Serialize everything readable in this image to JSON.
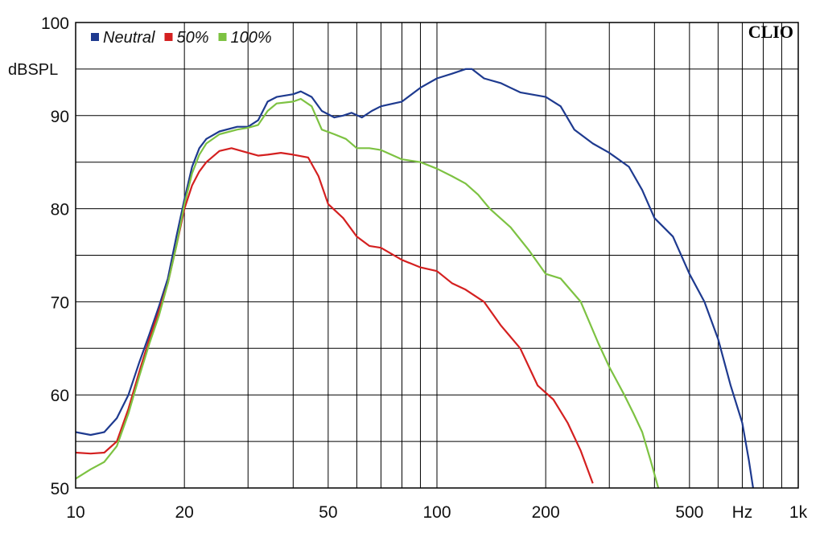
{
  "chart_data": {
    "type": "line",
    "brand": "CLIO",
    "ylabel": "dBSPL",
    "xlabel": "Hz",
    "xscale": "log",
    "xlim": [
      10,
      1000
    ],
    "ylim": [
      50,
      100
    ],
    "grid": true,
    "legend_position": "top-left",
    "x_tick_labels": [
      {
        "value": 10,
        "label": "10"
      },
      {
        "value": 20,
        "label": "20"
      },
      {
        "value": 50,
        "label": "50"
      },
      {
        "value": 100,
        "label": "100"
      },
      {
        "value": 200,
        "label": "200"
      },
      {
        "value": 500,
        "label": "500"
      },
      {
        "value": 1000,
        "label": "1k"
      }
    ],
    "y_tick_labels": [
      {
        "value": 50,
        "label": "50"
      },
      {
        "value": 60,
        "label": "60"
      },
      {
        "value": 70,
        "label": "70"
      },
      {
        "value": 80,
        "label": "80"
      },
      {
        "value": 90,
        "label": "90"
      },
      {
        "value": 100,
        "label": "100"
      }
    ],
    "series": [
      {
        "name": "Neutral",
        "color": "#1e3a8f",
        "points": [
          [
            10,
            56
          ],
          [
            11,
            55.7
          ],
          [
            12,
            56
          ],
          [
            13,
            57.5
          ],
          [
            14,
            60
          ],
          [
            15,
            63.5
          ],
          [
            16,
            66.5
          ],
          [
            17,
            69.5
          ],
          [
            18,
            72.5
          ],
          [
            19,
            77
          ],
          [
            20,
            81
          ],
          [
            21,
            84.5
          ],
          [
            22,
            86.5
          ],
          [
            23,
            87.5
          ],
          [
            25,
            88.3
          ],
          [
            28,
            88.8
          ],
          [
            30,
            88.8
          ],
          [
            32,
            89.5
          ],
          [
            34,
            91.5
          ],
          [
            36,
            92
          ],
          [
            40,
            92.3
          ],
          [
            42,
            92.6
          ],
          [
            45,
            92
          ],
          [
            48,
            90.5
          ],
          [
            52,
            89.8
          ],
          [
            55,
            90
          ],
          [
            58,
            90.3
          ],
          [
            62,
            89.8
          ],
          [
            66,
            90.5
          ],
          [
            70,
            91
          ],
          [
            80,
            91.5
          ],
          [
            90,
            93
          ],
          [
            100,
            94
          ],
          [
            110,
            94.5
          ],
          [
            120,
            95
          ],
          [
            125,
            95
          ],
          [
            135,
            94
          ],
          [
            150,
            93.5
          ],
          [
            170,
            92.5
          ],
          [
            200,
            92
          ],
          [
            220,
            91
          ],
          [
            240,
            88.5
          ],
          [
            270,
            87
          ],
          [
            300,
            86
          ],
          [
            340,
            84.5
          ],
          [
            370,
            82
          ],
          [
            400,
            79
          ],
          [
            450,
            77
          ],
          [
            500,
            73
          ],
          [
            550,
            70
          ],
          [
            600,
            66
          ],
          [
            650,
            61
          ],
          [
            700,
            57
          ],
          [
            730,
            53
          ],
          [
            750,
            50
          ]
        ]
      },
      {
        "name": "50%",
        "color": "#d42020",
        "points": [
          [
            10,
            53.8
          ],
          [
            11,
            53.7
          ],
          [
            12,
            53.8
          ],
          [
            13,
            55
          ],
          [
            14,
            58.5
          ],
          [
            15,
            62.5
          ],
          [
            16,
            66
          ],
          [
            17,
            69
          ],
          [
            18,
            72
          ],
          [
            19,
            76
          ],
          [
            20,
            80
          ],
          [
            21,
            82.5
          ],
          [
            22,
            84
          ],
          [
            23,
            85
          ],
          [
            25,
            86.2
          ],
          [
            27,
            86.5
          ],
          [
            30,
            86
          ],
          [
            32,
            85.7
          ],
          [
            34,
            85.8
          ],
          [
            37,
            86
          ],
          [
            40,
            85.8
          ],
          [
            44,
            85.5
          ],
          [
            47,
            83.5
          ],
          [
            50,
            80.5
          ],
          [
            55,
            79
          ],
          [
            60,
            77
          ],
          [
            65,
            76
          ],
          [
            70,
            75.8
          ],
          [
            80,
            74.5
          ],
          [
            90,
            73.7
          ],
          [
            100,
            73.3
          ],
          [
            110,
            72
          ],
          [
            120,
            71.3
          ],
          [
            135,
            70
          ],
          [
            150,
            67.5
          ],
          [
            170,
            65
          ],
          [
            190,
            61
          ],
          [
            210,
            59.5
          ],
          [
            230,
            57
          ],
          [
            250,
            54
          ],
          [
            270,
            50.5
          ]
        ]
      },
      {
        "name": "100%",
        "color": "#7dc242",
        "points": [
          [
            10,
            51
          ],
          [
            11,
            52
          ],
          [
            12,
            52.8
          ],
          [
            13,
            54.5
          ],
          [
            14,
            58
          ],
          [
            15,
            62
          ],
          [
            16,
            65.5
          ],
          [
            17,
            68.5
          ],
          [
            18,
            72
          ],
          [
            19,
            76
          ],
          [
            20,
            80.5
          ],
          [
            21,
            83.8
          ],
          [
            22,
            85.8
          ],
          [
            23,
            87
          ],
          [
            25,
            88
          ],
          [
            28,
            88.5
          ],
          [
            30,
            88.7
          ],
          [
            32,
            89
          ],
          [
            34,
            90.5
          ],
          [
            36,
            91.3
          ],
          [
            40,
            91.5
          ],
          [
            42,
            91.8
          ],
          [
            45,
            91
          ],
          [
            48,
            88.5
          ],
          [
            52,
            88
          ],
          [
            56,
            87.5
          ],
          [
            60,
            86.5
          ],
          [
            65,
            86.5
          ],
          [
            70,
            86.3
          ],
          [
            80,
            85.3
          ],
          [
            90,
            85
          ],
          [
            100,
            84.3
          ],
          [
            110,
            83.5
          ],
          [
            120,
            82.7
          ],
          [
            130,
            81.5
          ],
          [
            140,
            80
          ],
          [
            160,
            78
          ],
          [
            180,
            75.5
          ],
          [
            200,
            73
          ],
          [
            220,
            72.5
          ],
          [
            250,
            70
          ],
          [
            280,
            65.5
          ],
          [
            300,
            63
          ],
          [
            330,
            60
          ],
          [
            350,
            58
          ],
          [
            370,
            56
          ],
          [
            390,
            53
          ],
          [
            410,
            50
          ]
        ]
      }
    ]
  }
}
